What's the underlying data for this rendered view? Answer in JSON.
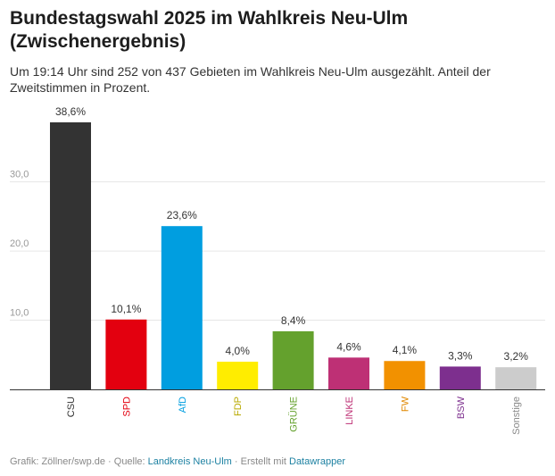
{
  "chart_data": {
    "type": "bar",
    "title": "Bundestagswahl 2025 im Wahlkreis Neu-Ulm (Zwischenergebnis)",
    "subtitle": "Um 19:14 Uhr sind 252 von 437 Gebieten im Wahlkreis Neu-Ulm ausgezählt. Anteil der Zweitstimmen in Prozent.",
    "categories": [
      "CSU",
      "SPD",
      "AfD",
      "FDP",
      "GRÜNE",
      "LINKE",
      "FW",
      "BSW",
      "Sonstige"
    ],
    "values": [
      38.6,
      10.1,
      23.6,
      4.0,
      8.4,
      4.6,
      4.1,
      3.3,
      3.2
    ],
    "value_labels": [
      "38,6%",
      "10,1%",
      "23,6%",
      "4,0%",
      "8,4%",
      "4,6%",
      "4,1%",
      "3,3%",
      "3,2%"
    ],
    "colors": [
      "#333333",
      "#e3000f",
      "#009ee0",
      "#ffed00",
      "#64a12d",
      "#be3075",
      "#f29100",
      "#7d2f8e",
      "#cccccc"
    ],
    "label_colors": [
      "#333333",
      "#e3000f",
      "#009ee0",
      "#b8a900",
      "#64a12d",
      "#be3075",
      "#e08700",
      "#7d2f8e",
      "#888888"
    ],
    "yticks": [
      10,
      20,
      30
    ],
    "ytick_labels": [
      "10,0",
      "20,0",
      "30,0"
    ],
    "ylim": [
      0,
      38.6
    ],
    "xlabel": "",
    "ylabel": "",
    "grid": true
  },
  "footer": {
    "prefix": "Grafik: Zöllner/swp.de · Quelle: ",
    "source": "Landkreis Neu-Ulm",
    "middle": " · Erstellt mit ",
    "tool": "Datawrapper"
  }
}
